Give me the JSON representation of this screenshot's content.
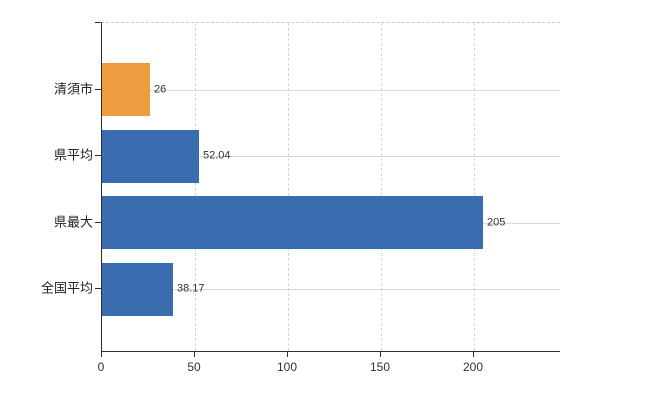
{
  "chart_data": {
    "type": "bar",
    "orientation": "horizontal",
    "title": "",
    "xlabel": "",
    "ylabel": "",
    "categories": [
      "清須市",
      "県平均",
      "県最大",
      "全国平均"
    ],
    "values": [
      26,
      52.04,
      205,
      38.17
    ],
    "value_labels": [
      "26",
      "52.04",
      "205",
      "38.17"
    ],
    "bar_colors": [
      "#ED9C40",
      "#3A6CB0",
      "#3A6CB0",
      "#3A6CB0"
    ],
    "x_tick_labels": [
      "0",
      "50",
      "100",
      "150",
      "200"
    ],
    "x_tick_values": [
      0,
      50,
      100,
      150,
      200
    ],
    "xlim": [
      0,
      246.8
    ],
    "grid": true,
    "legend": false
  },
  "colors": {
    "bar_orange": "#ED9C40",
    "bar_blue": "#3A6CB0",
    "axis": "#2e2e2e",
    "gridline": "#d6d6d6",
    "top_border_dashed": "#c9c9c9",
    "label_text": "#222222",
    "value_text": "#333333"
  }
}
